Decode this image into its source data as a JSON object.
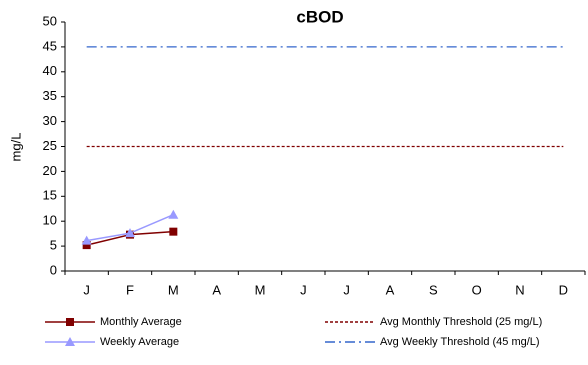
{
  "chart_data": {
    "type": "line",
    "title": "cBOD",
    "y_label": "mg/L",
    "categories": [
      "J",
      "F",
      "M",
      "A",
      "M",
      "J",
      "J",
      "A",
      "S",
      "O",
      "N",
      "D"
    ],
    "ylim": [
      0,
      50
    ],
    "yticks": [
      0,
      5,
      10,
      15,
      20,
      25,
      30,
      35,
      40,
      45,
      50
    ],
    "grid": false,
    "legend": "bottom",
    "series": [
      {
        "name": "Monthly Average",
        "color": "#800000",
        "style": "solid",
        "marker": "square",
        "values": [
          5.2,
          7.3,
          7.9,
          null,
          null,
          null,
          null,
          null,
          null,
          null,
          null,
          null
        ]
      },
      {
        "name": "Avg Monthly Threshold (25 mg/L)",
        "color": "#800000",
        "style": "dashed",
        "marker": "none",
        "values": [
          25,
          25,
          25,
          25,
          25,
          25,
          25,
          25,
          25,
          25,
          25,
          25
        ]
      },
      {
        "name": "Weekly Average",
        "color": "#9999ff",
        "style": "solid",
        "marker": "triangle",
        "values": [
          6.1,
          7.6,
          11.3,
          null,
          null,
          null,
          null,
          null,
          null,
          null,
          null,
          null
        ]
      },
      {
        "name": "Avg Weekly Threshold (45 mg/L)",
        "color": "#3366cc",
        "style": "dashdot",
        "marker": "none",
        "values": [
          45,
          45,
          45,
          45,
          45,
          45,
          45,
          45,
          45,
          45,
          45,
          45
        ]
      }
    ]
  }
}
